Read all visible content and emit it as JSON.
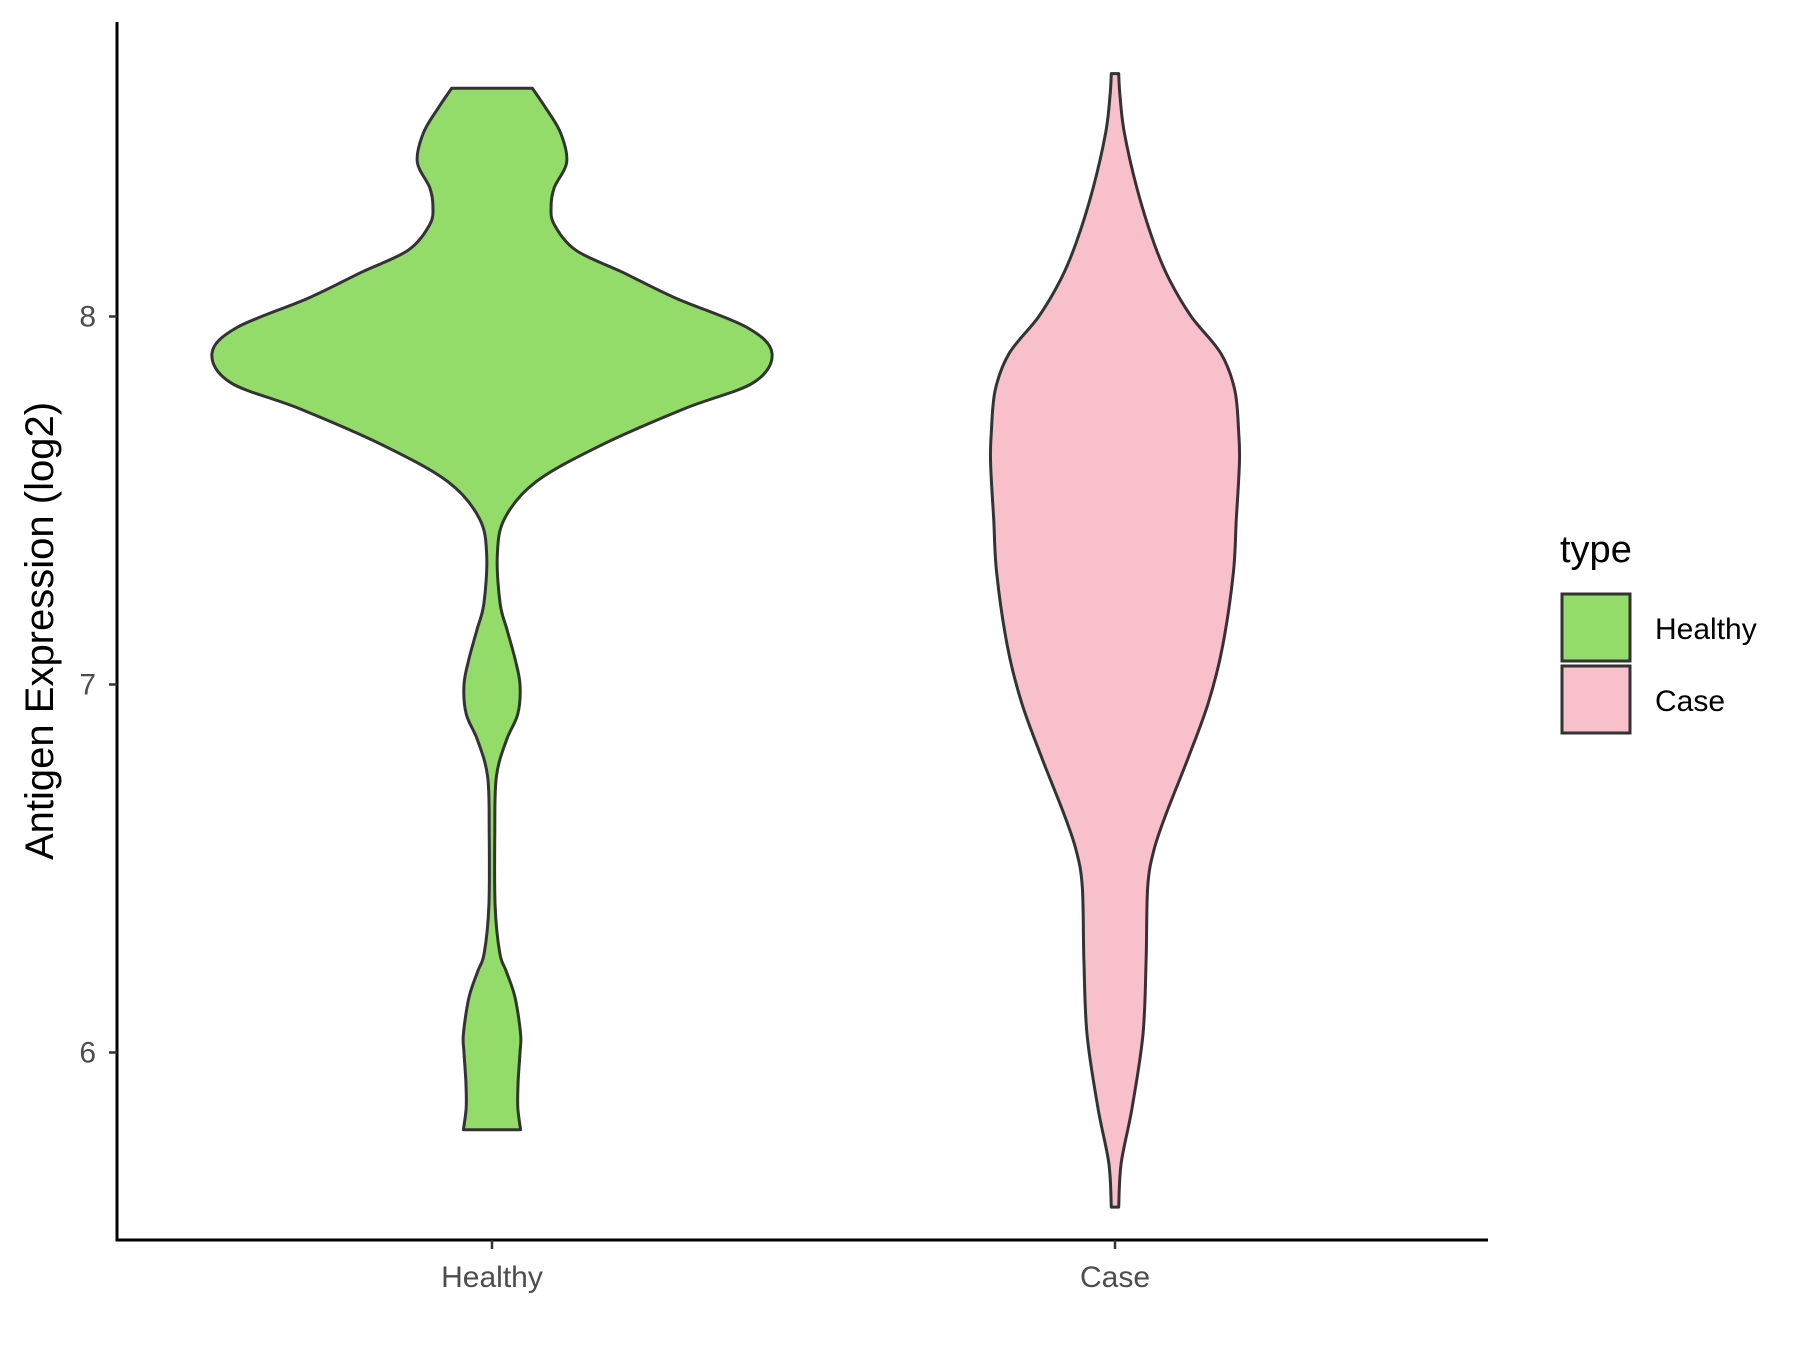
{
  "chart_data": {
    "type": "violin",
    "title": "",
    "xlabel": "",
    "ylabel": "Antigen Expression (log2)",
    "ylim": [
      5.5,
      8.8
    ],
    "yticks": [
      6,
      7,
      8
    ],
    "ytick_labels": [
      "6",
      "7",
      "8"
    ],
    "categories": [
      "Healthy",
      "Case"
    ],
    "grid": false,
    "legend": {
      "title": "type",
      "placement": "right",
      "entries": [
        {
          "label": "Healthy",
          "color": "#93dc6a"
        },
        {
          "label": "Case",
          "color": "#f7c0cb"
        }
      ]
    },
    "series": [
      {
        "category": "Healthy",
        "color": "#93dc6a",
        "min": 5.79,
        "max": 8.62,
        "density": [
          [
            5.79,
            0.092
          ],
          [
            5.85,
            0.083
          ],
          [
            5.92,
            0.084
          ],
          [
            6.0,
            0.09
          ],
          [
            6.05,
            0.092
          ],
          [
            6.15,
            0.074
          ],
          [
            6.22,
            0.046
          ],
          [
            6.27,
            0.025
          ],
          [
            6.4,
            0.01
          ],
          [
            6.6,
            0.009
          ],
          [
            6.75,
            0.014
          ],
          [
            6.85,
            0.047
          ],
          [
            6.92,
            0.083
          ],
          [
            7.0,
            0.09
          ],
          [
            7.07,
            0.074
          ],
          [
            7.15,
            0.048
          ],
          [
            7.22,
            0.026
          ],
          [
            7.35,
            0.017
          ],
          [
            7.45,
            0.04
          ],
          [
            7.55,
            0.14
          ],
          [
            7.65,
            0.35
          ],
          [
            7.75,
            0.62
          ],
          [
            7.82,
            0.84
          ],
          [
            7.9,
            0.9
          ],
          [
            7.97,
            0.82
          ],
          [
            8.05,
            0.59
          ],
          [
            8.12,
            0.42
          ],
          [
            8.18,
            0.27
          ],
          [
            8.25,
            0.2
          ],
          [
            8.3,
            0.19
          ],
          [
            8.35,
            0.2
          ],
          [
            8.42,
            0.24
          ],
          [
            8.5,
            0.22
          ],
          [
            8.57,
            0.17
          ],
          [
            8.62,
            0.13
          ]
        ]
      },
      {
        "category": "Case",
        "color": "#f7c0cb",
        "min": 5.58,
        "max": 8.66,
        "density": [
          [
            5.58,
            0.012
          ],
          [
            5.7,
            0.02
          ],
          [
            5.85,
            0.055
          ],
          [
            6.05,
            0.09
          ],
          [
            6.25,
            0.1
          ],
          [
            6.45,
            0.105
          ],
          [
            6.55,
            0.125
          ],
          [
            6.65,
            0.165
          ],
          [
            6.8,
            0.235
          ],
          [
            6.95,
            0.3
          ],
          [
            7.1,
            0.345
          ],
          [
            7.3,
            0.38
          ],
          [
            7.45,
            0.39
          ],
          [
            7.6,
            0.4
          ],
          [
            7.68,
            0.398
          ],
          [
            7.8,
            0.385
          ],
          [
            7.9,
            0.34
          ],
          [
            8.0,
            0.245
          ],
          [
            8.1,
            0.175
          ],
          [
            8.2,
            0.125
          ],
          [
            8.35,
            0.07
          ],
          [
            8.5,
            0.03
          ],
          [
            8.6,
            0.016
          ],
          [
            8.66,
            0.012
          ]
        ]
      }
    ]
  }
}
